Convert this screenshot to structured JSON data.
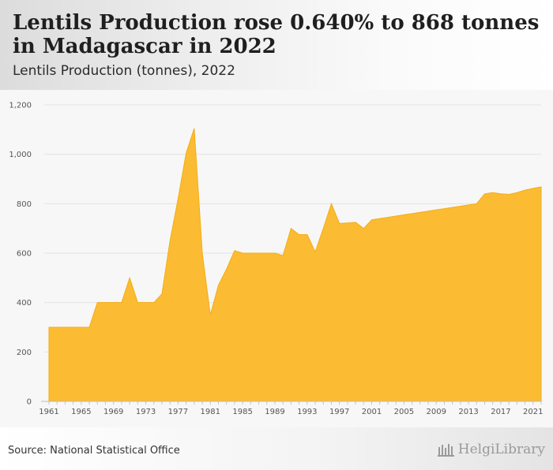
{
  "header": {
    "title": "Lentils Production rose 0.640% to 868 tonnes in Madagascar in 2022",
    "subtitle": "Lentils Production (tonnes), 2022"
  },
  "footer": {
    "source": "Source: National Statistical Office",
    "brand": "HelgiLibrary",
    "brand_icon": "helgi-library-logo-icon"
  },
  "colors": {
    "area_fill": "#fbbc33",
    "area_stroke": "#f4ad14",
    "grid": "#e3e3e3"
  },
  "chart_data": {
    "type": "area",
    "title": "Lentils Production (tonnes), 2022",
    "xlabel": "",
    "ylabel": "",
    "ylim": [
      0,
      1200
    ],
    "yticks": [
      0,
      200,
      400,
      600,
      800,
      1000,
      1200
    ],
    "ytick_labels": [
      "0",
      "200",
      "400",
      "600",
      "800",
      "1,000",
      "1,200"
    ],
    "xticks": [
      1961,
      1965,
      1969,
      1973,
      1977,
      1981,
      1985,
      1989,
      1993,
      1997,
      2001,
      2005,
      2009,
      2013,
      2017,
      2021
    ],
    "grid": true,
    "legend": "none",
    "x": [
      1961,
      1962,
      1963,
      1964,
      1965,
      1966,
      1967,
      1968,
      1969,
      1970,
      1971,
      1972,
      1973,
      1974,
      1975,
      1976,
      1977,
      1978,
      1979,
      1980,
      1981,
      1982,
      1983,
      1984,
      1985,
      1986,
      1987,
      1988,
      1989,
      1990,
      1991,
      1992,
      1993,
      1994,
      1995,
      1996,
      1997,
      1998,
      1999,
      2000,
      2001,
      2002,
      2003,
      2004,
      2005,
      2006,
      2007,
      2008,
      2009,
      2010,
      2011,
      2012,
      2013,
      2014,
      2015,
      2016,
      2017,
      2018,
      2019,
      2020,
      2021,
      2022
    ],
    "values": [
      300,
      300,
      300,
      300,
      300,
      300,
      400,
      400,
      400,
      400,
      500,
      400,
      400,
      400,
      435,
      650,
      820,
      1005,
      1105,
      600,
      350,
      470,
      535,
      610,
      600,
      600,
      600,
      600,
      600,
      590,
      700,
      675,
      675,
      605,
      700,
      800,
      720,
      722,
      725,
      700,
      735,
      740,
      745,
      750,
      755,
      760,
      765,
      770,
      775,
      780,
      785,
      790,
      795,
      800,
      840,
      845,
      840,
      838,
      845,
      855,
      862,
      868
    ]
  }
}
